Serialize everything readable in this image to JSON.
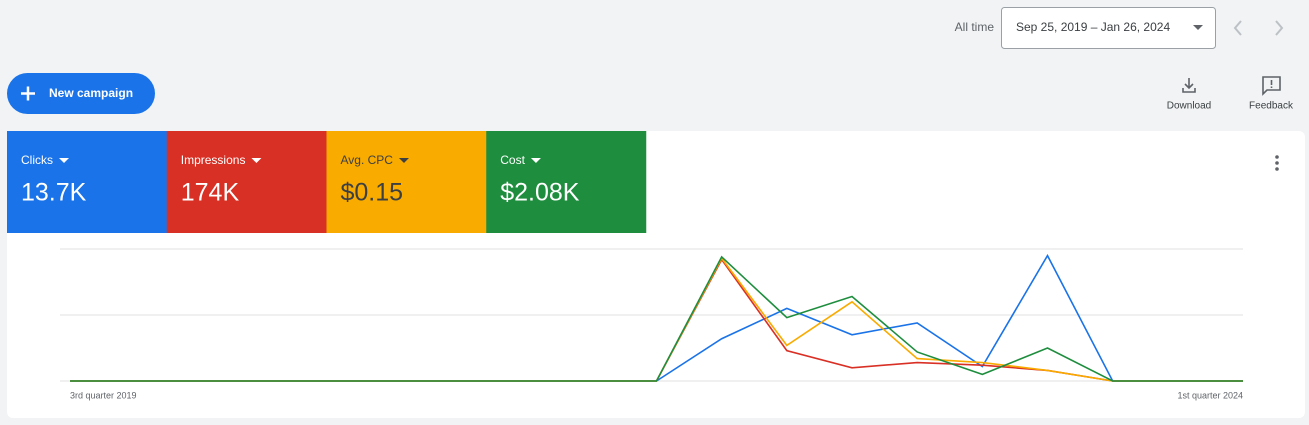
{
  "header": {
    "time_range_label": "All time",
    "date_range": "Sep 25, 2019 – Jan 26, 2024"
  },
  "toolbar": {
    "new_campaign": "New campaign",
    "download": "Download",
    "feedback": "Feedback"
  },
  "chart_data": {
    "type": "line",
    "categories": [
      "3rd quarter 2019",
      null,
      null,
      null,
      null,
      null,
      null,
      null,
      null,
      null,
      null,
      null,
      null,
      null,
      null,
      null,
      null,
      null,
      "1st quarter 2024"
    ],
    "ylim": [
      0,
      100
    ],
    "yticks": [
      0,
      50,
      100
    ],
    "grid": true,
    "series": [
      {
        "name": "Clicks",
        "total_label": "13.7K",
        "color": "#1a73e8",
        "values": [
          0,
          0,
          0,
          0,
          0,
          0,
          0,
          0,
          0,
          0,
          32,
          55,
          35,
          44,
          11,
          95,
          0,
          0,
          0
        ]
      },
      {
        "name": "Impressions",
        "total_label": "174K",
        "color": "#d93025",
        "values": [
          0,
          0,
          0,
          0,
          0,
          0,
          0,
          0,
          0,
          0,
          92,
          23,
          10,
          14,
          12,
          8,
          0,
          0,
          0
        ]
      },
      {
        "name": "Avg. CPC",
        "total_label": "$0.15",
        "color": "#f9ab00",
        "values": [
          0,
          0,
          0,
          0,
          0,
          0,
          0,
          0,
          0,
          0,
          93,
          27,
          60,
          17,
          14,
          8,
          0,
          0,
          0
        ]
      },
      {
        "name": "Cost",
        "total_label": "$2.08K",
        "color": "#1e8e3e",
        "values": [
          0,
          0,
          0,
          0,
          0,
          0,
          0,
          0,
          0,
          0,
          94,
          48,
          64,
          22,
          5,
          25,
          0,
          0,
          0
        ]
      }
    ]
  }
}
